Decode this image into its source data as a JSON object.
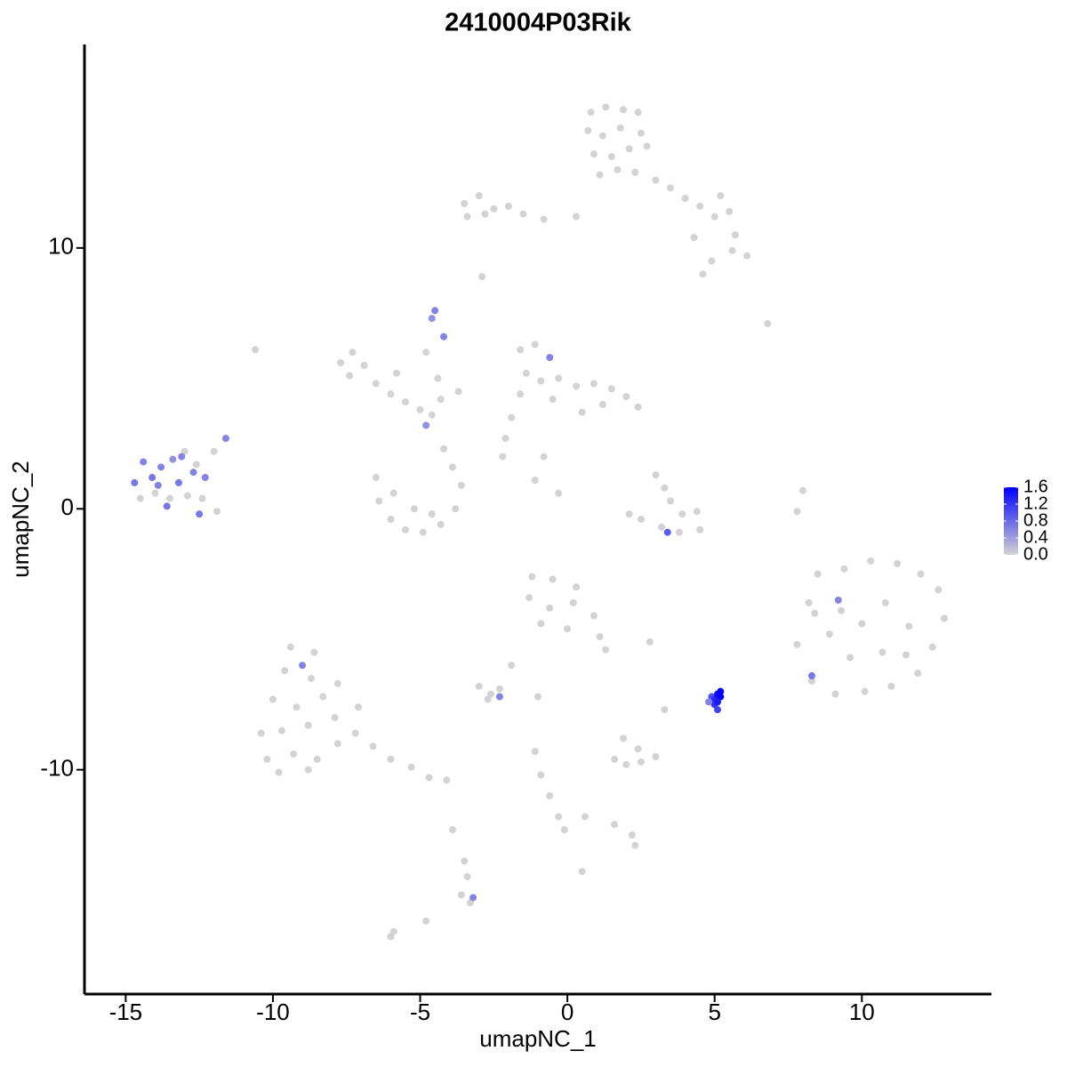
{
  "chart_data": {
    "type": "scatter",
    "title": "2410004P03Rik",
    "x_label": "umapNC_1",
    "y_label": "umapNC_2",
    "xlim": [
      -16.4,
      14.4
    ],
    "ylim": [
      -18.6,
      17.8
    ],
    "xticks": [
      -15,
      -10,
      -5,
      0,
      5,
      10
    ],
    "yticks": [
      -10,
      0,
      10
    ],
    "colorlim": [
      0,
      1.6
    ],
    "colorticks": [
      {
        "value": 0,
        "label": "0.0"
      },
      0.4,
      0.8,
      1.2,
      1.6
    ],
    "low_color": "#d3d3d3",
    "high_color": "#0000ff",
    "x": [
      0.8,
      1.3,
      1.9,
      2.4,
      0.7,
      1.2,
      1.8,
      2.5,
      0.9,
      1.5,
      2.1,
      2.7,
      1.1,
      1.7,
      2.3,
      3.0,
      3.5,
      4.0,
      4.5,
      5.0,
      5.5,
      5.7,
      6.1,
      5.6,
      4.9,
      4.6,
      4.3,
      5.2,
      -3.5,
      -3.0,
      -2.5,
      -2.0,
      -1.5,
      -0.8,
      -3.4,
      -2.8,
      0.3,
      -2.9,
      -7.7,
      -7.3,
      -6.9,
      -7.4,
      -6.5,
      -6.0,
      -5.5,
      -5.0,
      -4.6,
      -4.3,
      -5.8,
      -4.8,
      -4.4,
      -4.6,
      -4.5,
      -4.2,
      -4.8,
      -3.7,
      -10.6,
      -1.6,
      -1.1,
      -0.6,
      -1.4,
      -0.9,
      -0.3,
      0.3,
      0.9,
      1.5,
      2.0,
      2.4,
      1.2,
      0.5,
      -0.5,
      -1.6,
      -1.9,
      -2.1,
      -2.2,
      -0.8,
      -1.1,
      -0.3,
      6.8,
      -6.5,
      -6.4,
      -6.0,
      -5.5,
      -4.9,
      -4.3,
      -3.8,
      -3.6,
      -3.9,
      -4.2,
      -5.2,
      -4.6,
      -5.9,
      -14.7,
      -14.4,
      -14.1,
      -13.8,
      -13.4,
      -13.0,
      -12.6,
      -12.3,
      -12.4,
      -12.9,
      -13.5,
      -14.0,
      -14.5,
      -13.9,
      -13.2,
      -12.7,
      -13.6,
      -12.5,
      -11.9,
      -11.6,
      -12.0,
      -13.1,
      3.0,
      3.3,
      3.5,
      3.9,
      4.4,
      4.5,
      3.8,
      3.2,
      2.5,
      2.1,
      3.4,
      8.0,
      7.8,
      8.5,
      9.4,
      10.3,
      11.2,
      12.0,
      12.6,
      12.8,
      12.4,
      11.9,
      11.0,
      10.1,
      9.1,
      8.3,
      7.8,
      8.4,
      9.3,
      10.0,
      10.8,
      11.6,
      9.6,
      10.7,
      11.5,
      8.9,
      9.2,
      8.3,
      8.2,
      -1.2,
      -0.5,
      0.3,
      -1.3,
      -0.6,
      0.2,
      0.9,
      -0.9,
      0.0,
      1.1,
      1.3,
      2.8,
      -9.4,
      -8.6,
      -9.6,
      -8.7,
      -9.0,
      -10.0,
      -9.2,
      -8.3,
      -7.8,
      -10.4,
      -9.7,
      -8.8,
      -7.9,
      -10.2,
      -9.3,
      -8.5,
      -7.8,
      -7.2,
      -6.6,
      -6.0,
      -5.3,
      -4.7,
      -4.1,
      -9.8,
      -8.8,
      -7.1,
      -3.0,
      -2.6,
      -2.3,
      -2.7,
      -2.3,
      -1.9,
      -1.0,
      3.3,
      4.9,
      5.0,
      5.1,
      5.2,
      5.0,
      5.1,
      5.2,
      4.8,
      5.1,
      1.6,
      2.0,
      2.5,
      3.0,
      2.4,
      1.9,
      -1.1,
      -0.9,
      -0.6,
      -0.3,
      -0.1,
      0.6,
      1.6,
      2.2,
      2.3,
      0.5,
      -3.5,
      -3.4,
      -3.6,
      -3.3,
      -3.2,
      -3.9,
      -6.0,
      -5.9,
      -4.8
    ],
    "y": [
      15.2,
      15.4,
      15.3,
      15.2,
      14.5,
      14.3,
      14.6,
      14.4,
      13.6,
      13.5,
      13.8,
      13.9,
      12.8,
      13.0,
      12.9,
      12.6,
      12.3,
      11.9,
      11.6,
      11.2,
      11.4,
      10.5,
      9.7,
      9.9,
      9.5,
      9.0,
      10.4,
      12.0,
      11.7,
      12.0,
      11.5,
      11.6,
      11.3,
      11.1,
      11.2,
      11.3,
      11.2,
      8.9,
      5.6,
      6.0,
      5.5,
      5.1,
      4.8,
      4.4,
      4.1,
      3.8,
      3.6,
      4.2,
      5.2,
      6.0,
      5.0,
      7.3,
      7.6,
      6.6,
      3.2,
      4.5,
      6.1,
      6.1,
      6.3,
      5.8,
      5.2,
      4.9,
      5.0,
      4.7,
      4.8,
      4.6,
      4.3,
      3.9,
      4.0,
      3.7,
      4.2,
      4.4,
      3.5,
      2.7,
      2.0,
      2.0,
      1.1,
      0.6,
      7.1,
      1.2,
      0.3,
      -0.4,
      -0.8,
      -0.9,
      -0.6,
      0.0,
      0.9,
      1.6,
      2.3,
      0.0,
      -0.2,
      0.6,
      1.0,
      1.8,
      1.2,
      1.6,
      1.9,
      2.2,
      1.7,
      1.2,
      0.4,
      0.5,
      0.4,
      0.6,
      0.4,
      0.9,
      1.0,
      1.4,
      0.1,
      -0.2,
      -0.1,
      2.7,
      2.2,
      2.0,
      1.3,
      0.8,
      0.3,
      -0.2,
      -0.1,
      -0.8,
      -0.9,
      -0.7,
      -0.4,
      -0.2,
      -0.9,
      0.7,
      -0.1,
      -2.5,
      -2.3,
      -2.0,
      -2.1,
      -2.5,
      -3.1,
      -4.2,
      -5.3,
      -6.3,
      -6.8,
      -7.0,
      -7.1,
      -6.6,
      -5.2,
      -4.0,
      -3.9,
      -4.4,
      -3.6,
      -4.5,
      -5.7,
      -5.5,
      -5.6,
      -4.8,
      -3.5,
      -6.4,
      -3.6,
      -2.6,
      -2.7,
      -3.0,
      -3.4,
      -3.8,
      -3.6,
      -4.1,
      -4.4,
      -4.6,
      -4.9,
      -5.4,
      -5.1,
      -5.3,
      -5.5,
      -6.2,
      -6.5,
      -6.0,
      -7.3,
      -7.6,
      -7.2,
      -6.7,
      -8.6,
      -8.5,
      -8.3,
      -8.0,
      -9.6,
      -9.4,
      -9.6,
      -9.0,
      -8.6,
      -9.1,
      -9.6,
      -9.9,
      -10.3,
      -10.4,
      -10.1,
      -10.0,
      -7.6,
      -6.8,
      -7.1,
      -6.9,
      -7.3,
      -7.2,
      -6.0,
      -7.2,
      -7.7,
      -7.2,
      -7.3,
      -7.1,
      -7.0,
      -7.5,
      -7.7,
      -7.2,
      -7.4,
      -7.4,
      -9.6,
      -9.8,
      -9.7,
      -9.5,
      -9.2,
      -8.8,
      -9.3,
      -10.2,
      -11.0,
      -11.8,
      -12.3,
      -11.8,
      -12.1,
      -12.5,
      -12.9,
      -13.9,
      -13.5,
      -14.1,
      -14.8,
      -15.1,
      -14.9,
      -12.3,
      -16.4,
      -16.2,
      -15.8
    ],
    "expression": [
      0,
      0,
      0,
      0,
      0,
      0,
      0,
      0,
      0,
      0,
      0,
      0,
      0,
      0,
      0,
      0,
      0,
      0,
      0,
      0,
      0,
      0,
      0,
      0,
      0,
      0,
      0,
      0,
      0,
      0,
      0,
      0,
      0,
      0,
      0,
      0,
      0,
      0,
      0,
      0,
      0,
      0,
      0,
      0,
      0,
      0,
      0,
      0,
      0,
      0,
      0,
      0.5,
      0.6,
      0.6,
      0.5,
      0,
      0,
      0,
      0,
      0.6,
      0,
      0,
      0,
      0,
      0,
      0,
      0,
      0,
      0,
      0,
      0,
      0,
      0,
      0,
      0,
      0,
      0,
      0,
      0,
      0,
      0,
      0,
      0,
      0,
      0,
      0,
      0,
      0,
      0,
      0,
      0,
      0,
      0.7,
      0.6,
      0.7,
      0.6,
      0.5,
      0,
      0,
      0.6,
      0,
      0,
      0,
      0,
      0,
      0.6,
      0.7,
      0.6,
      0.7,
      0.7,
      0,
      0.6,
      0,
      0.6,
      0,
      0,
      0,
      0,
      0,
      0,
      0,
      0,
      0,
      0,
      0.9,
      0,
      0,
      0,
      0,
      0,
      0,
      0,
      0,
      0,
      0,
      0,
      0,
      0,
      0,
      0,
      0,
      0,
      0,
      0,
      0,
      0,
      0,
      0,
      0,
      0,
      0.6,
      0.7,
      0,
      0,
      0,
      0,
      0,
      0,
      0,
      0,
      0,
      0,
      0,
      0,
      0,
      0,
      0,
      0,
      0,
      0.6,
      0,
      0,
      0,
      0,
      0,
      0,
      0,
      0,
      0,
      0,
      0,
      0,
      0,
      0,
      0,
      0,
      0,
      0,
      0,
      0,
      0,
      0,
      0,
      0,
      0,
      0.6,
      0,
      0,
      0,
      1.0,
      1.3,
      1.5,
      1.6,
      1.2,
      1.1,
      1.6,
      0.6,
      1.4,
      0,
      0,
      0,
      0,
      0,
      0,
      0,
      0,
      0,
      0,
      0,
      0,
      0,
      0,
      0,
      0,
      0,
      0,
      0,
      0,
      0.6,
      0,
      0,
      0,
      0
    ]
  }
}
